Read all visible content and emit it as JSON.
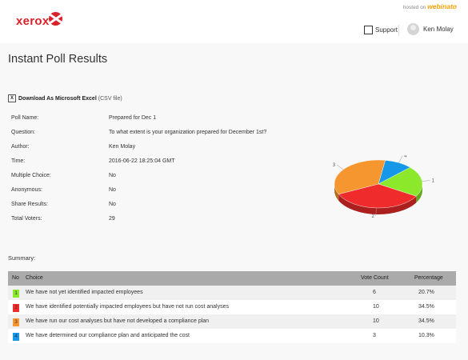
{
  "header": {
    "brand": "xerox",
    "hosted_by": "hosted on",
    "hosted_brand": "webinato",
    "support_label": "Support",
    "user_name": "Ken Molay"
  },
  "page": {
    "title": "Instant Poll Results",
    "download_label": "Download As Microsoft Excel",
    "download_sub": "(CSV file)"
  },
  "info": [
    {
      "label": "Poll Name:",
      "value": "Prepared for Dec 1"
    },
    {
      "label": "Question:",
      "value": "To what extent is your organization prepared for December 1st?"
    },
    {
      "label": "Author:",
      "value": "Ken Molay"
    },
    {
      "label": "Time:",
      "value": "2016-06-22 18:25:04 GMT"
    },
    {
      "label": "Multiple Choice:",
      "value": "No"
    },
    {
      "label": "Anonymous:",
      "value": "No"
    },
    {
      "label": "Share Results:",
      "value": "No"
    },
    {
      "label": "Total Voters:",
      "value": "29"
    }
  ],
  "summary": {
    "label": "Summary:",
    "columns": {
      "no": "No",
      "choice": "Choice",
      "votes": "Vote Count",
      "pct": "Percentage"
    },
    "rows": [
      {
        "no": "1",
        "choice": "We have not yet identified impacted employees",
        "votes": "6",
        "pct": "20.7%",
        "color": "#8be82b"
      },
      {
        "no": "2",
        "choice": "We have identified potentially impacted employees but have not run cost analyses",
        "votes": "10",
        "pct": "34.5%",
        "color": "#ef2b2b"
      },
      {
        "no": "3",
        "choice": "We have run our cost analyses but have not developed a compliance plan",
        "votes": "10",
        "pct": "34.5%",
        "color": "#f6962f"
      },
      {
        "no": "4",
        "choice": "We have determined our compliance plan and anticipated the cost",
        "votes": "3",
        "pct": "10.3%",
        "color": "#1797e8"
      }
    ]
  },
  "chart_data": {
    "type": "pie",
    "categories": [
      "1",
      "2",
      "3",
      "4"
    ],
    "values": [
      6,
      10,
      10,
      3
    ],
    "colors": [
      "#8be82b",
      "#ef2b2b",
      "#f6962f",
      "#1797e8"
    ]
  }
}
